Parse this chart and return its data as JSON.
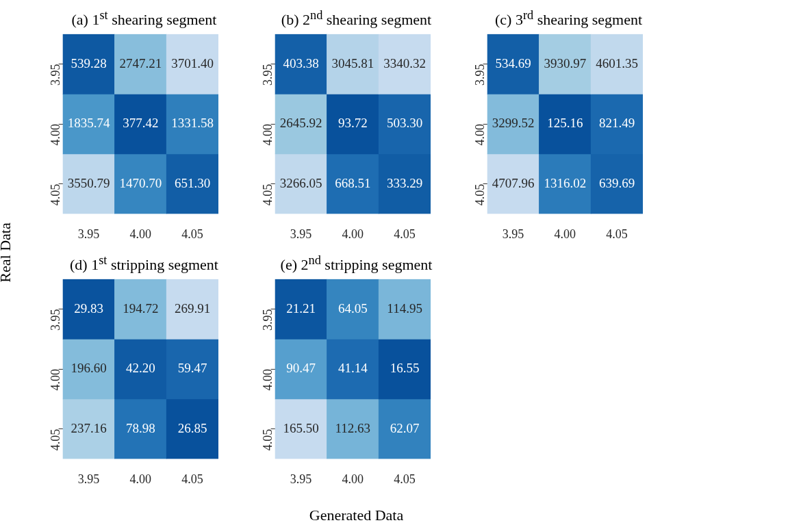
{
  "chart_data": [
    {
      "type": "heatmap",
      "title": "(a) 1$^{st}$ shearing segment",
      "categories": [
        "3.95",
        "4.00",
        "4.05"
      ],
      "y_categories": [
        "3.95",
        "4.00",
        "4.05"
      ],
      "data_labels": true,
      "cells": [
        [
          539.28,
          2747.21,
          3701.4
        ],
        [
          1835.74,
          377.42,
          1331.58
        ],
        [
          3550.79,
          1470.7,
          651.3
        ]
      ],
      "cell_labels": [
        [
          "539.28",
          "2747.21",
          "3701.40"
        ],
        [
          "1835.74",
          "377.42",
          "1331.58"
        ],
        [
          "3550.79",
          "1470.70",
          "651.30"
        ]
      ]
    },
    {
      "type": "heatmap",
      "title": "(b) 2$^{nd}$ shearing segment",
      "categories": [
        "3.95",
        "4.00",
        "4.05"
      ],
      "y_categories": [
        "3.95",
        "4.00",
        "4.05"
      ],
      "data_labels": true,
      "cells": [
        [
          403.38,
          3045.81,
          3340.32
        ],
        [
          2645.92,
          93.72,
          503.3
        ],
        [
          3266.05,
          668.51,
          333.29
        ]
      ],
      "cell_labels": [
        [
          "403.38",
          "3045.81",
          "3340.32"
        ],
        [
          "2645.92",
          "93.72",
          "503.30"
        ],
        [
          "3266.05",
          "668.51",
          "333.29"
        ]
      ]
    },
    {
      "type": "heatmap",
      "title": "(c) 3$^{rd}$ shearing segment",
      "categories": [
        "3.95",
        "4.00",
        "4.05"
      ],
      "y_categories": [
        "3.95",
        "4.00",
        "4.05"
      ],
      "data_labels": true,
      "cells": [
        [
          534.69,
          3930.97,
          4601.35
        ],
        [
          3299.52,
          125.16,
          821.49
        ],
        [
          4707.96,
          1316.02,
          639.69
        ]
      ],
      "cell_labels": [
        [
          "534.69",
          "3930.97",
          "4601.35"
        ],
        [
          "3299.52",
          "125.16",
          "821.49"
        ],
        [
          "4707.96",
          "1316.02",
          "639.69"
        ]
      ]
    },
    {
      "type": "heatmap",
      "title": "(d) 1$^{st}$ stripping segment",
      "ylabel": "Real Data",
      "categories": [
        "3.95",
        "4.00",
        "4.05"
      ],
      "y_categories": [
        "3.95",
        "4.00",
        "4.05"
      ],
      "data_labels": true,
      "cells": [
        [
          29.83,
          194.72,
          269.91
        ],
        [
          196.6,
          42.2,
          59.47
        ],
        [
          237.16,
          78.98,
          26.85
        ]
      ],
      "cell_labels": [
        [
          "29.83",
          "194.72",
          "269.91"
        ],
        [
          "196.60",
          "42.20",
          "59.47"
        ],
        [
          "237.16",
          "78.98",
          "26.85"
        ]
      ]
    },
    {
      "type": "heatmap",
      "title": "(e) 2$^{nd}$ stripping segment",
      "xlabel": "Generated Data",
      "categories": [
        "3.95",
        "4.00",
        "4.05"
      ],
      "y_categories": [
        "3.95",
        "4.00",
        "4.05"
      ],
      "data_labels": true,
      "cells": [
        [
          21.21,
          64.05,
          114.95
        ],
        [
          90.47,
          41.14,
          16.55
        ],
        [
          165.5,
          112.63,
          62.07
        ]
      ],
      "cell_labels": [
        [
          "21.21",
          "64.05",
          "114.95"
        ],
        [
          "90.47",
          "41.14",
          "16.55"
        ],
        [
          "165.50",
          "112.63",
          "62.07"
        ]
      ]
    }
  ]
}
